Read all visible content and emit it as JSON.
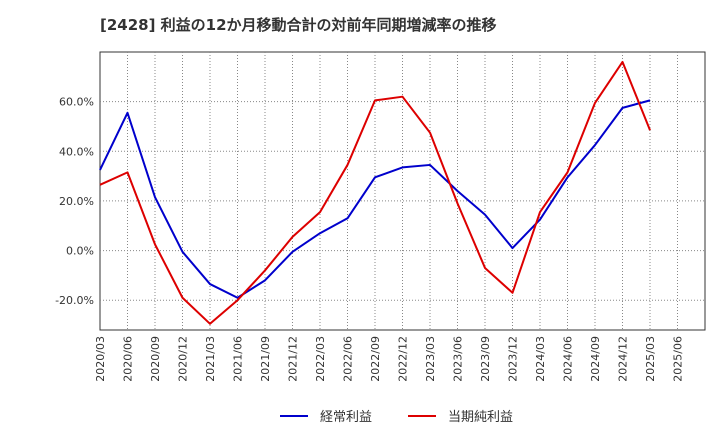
{
  "chart_data": {
    "type": "line",
    "title": "[2428]  利益の12か月移動合計の対前年同期増減率の推移",
    "xlabel": "",
    "ylabel": "",
    "ylim": [
      -32,
      80
    ],
    "y_ticks": [
      -20,
      0,
      20,
      40,
      60
    ],
    "y_tick_labels": [
      "-20.0%",
      "0.0%",
      "20.0%",
      "40.0%",
      "60.0%"
    ],
    "x_ticks": [
      "2020/03",
      "2020/06",
      "2020/09",
      "2020/12",
      "2021/03",
      "2021/06",
      "2021/09",
      "2021/12",
      "2022/03",
      "2022/06",
      "2022/09",
      "2022/12",
      "2023/03",
      "2023/06",
      "2023/09",
      "2023/12",
      "2024/03",
      "2024/06",
      "2024/09",
      "2024/12",
      "2025/03",
      "2025/06"
    ],
    "grid": true,
    "legend_position": "bottom",
    "series": [
      {
        "name": "経常利益",
        "color": "#0000cc",
        "x": [
          "2020/03",
          "2020/06",
          "2020/09",
          "2020/12",
          "2021/03",
          "2021/06",
          "2021/09",
          "2021/12",
          "2022/03",
          "2022/06",
          "2022/09",
          "2022/12",
          "2023/03",
          "2023/06",
          "2023/09",
          "2023/12",
          "2024/03",
          "2024/06",
          "2024/09",
          "2024/12",
          "2025/03"
        ],
        "values": [
          32.5,
          55.5,
          21.5,
          -0.5,
          -13.5,
          -19,
          -12,
          -0.5,
          7,
          13,
          29.5,
          33.5,
          34.5,
          24,
          14.5,
          1,
          12.5,
          29.5,
          42.5,
          57.5,
          60.5
        ]
      },
      {
        "name": "当期純利益",
        "color": "#dd0000",
        "x": [
          "2020/03",
          "2020/06",
          "2020/09",
          "2020/12",
          "2021/03",
          "2021/06",
          "2021/09",
          "2021/12",
          "2022/03",
          "2022/06",
          "2022/09",
          "2022/12",
          "2023/03",
          "2023/06",
          "2023/09",
          "2023/12",
          "2024/03",
          "2024/06",
          "2024/09",
          "2024/12",
          "2025/03"
        ],
        "values": [
          26.5,
          31.5,
          2.5,
          -19,
          -29.5,
          -20,
          -8,
          5.5,
          15.5,
          34.5,
          60.5,
          62,
          47.5,
          19,
          -7,
          -17,
          15.5,
          31.5,
          59.5,
          76,
          48.5
        ]
      }
    ]
  }
}
